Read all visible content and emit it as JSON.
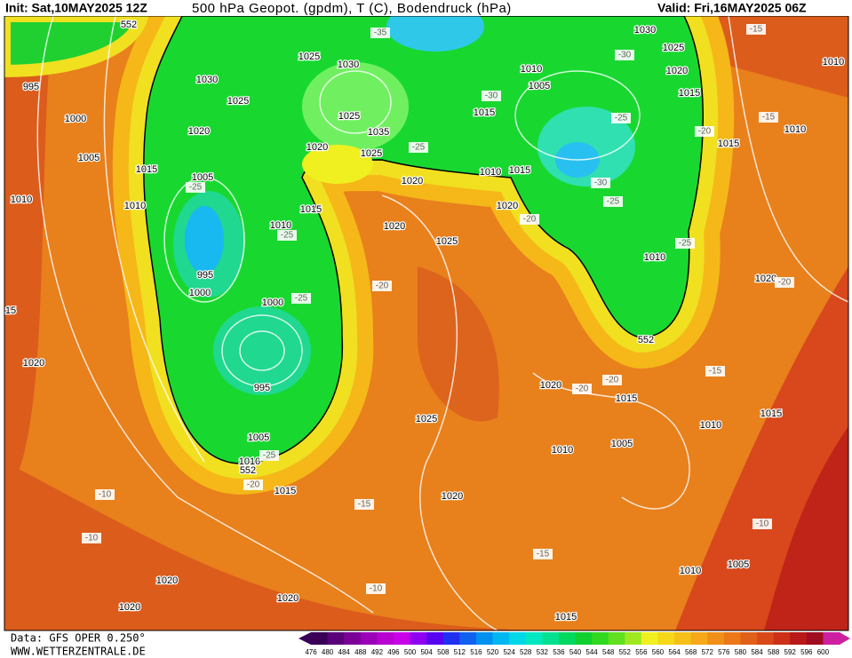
{
  "header": {
    "init": "Init: Sat,10MAY2025 12Z",
    "title": "500 hPa Geopot. (gpdm), T (C), Bodendruck (hPa)",
    "valid": "Valid: Fri,16MAY2025 06Z"
  },
  "footer": {
    "data": "Data: GFS OPER 0.250°",
    "site": "WWW.WETTERZENTRALE.DE"
  },
  "colorbar": {
    "labels": [
      "476",
      "480",
      "484",
      "488",
      "492",
      "496",
      "500",
      "504",
      "508",
      "512",
      "516",
      "520",
      "524",
      "528",
      "532",
      "536",
      "540",
      "544",
      "548",
      "552",
      "556",
      "560",
      "564",
      "568",
      "572",
      "576",
      "580",
      "584",
      "588",
      "592",
      "596",
      "600"
    ]
  },
  "map": {
    "pressure_labels": [
      "995",
      "1000",
      "1005",
      "1010",
      "1010",
      "1015",
      "1005",
      "1020",
      "1030",
      "1025",
      "1025",
      "1030",
      "1025",
      "1035",
      "1020",
      "1025",
      "1010",
      "1015",
      "1020",
      "1020",
      "1025",
      "1015",
      "1010",
      "1015",
      "1020",
      "1010",
      "1005",
      "1030",
      "1025",
      "1020",
      "1015",
      "1015",
      "1010",
      "1010",
      "1010",
      "1020",
      "995",
      "1000",
      "1000",
      "995",
      "1005",
      "1010",
      "1020",
      "1025",
      "1020",
      "1015",
      "1010",
      "1005",
      "1010",
      "1015",
      "1020",
      "1015",
      "1020",
      "1020",
      "1020",
      "1010",
      "1005",
      "1015",
      "15"
    ],
    "temperature_labels": [
      "-35",
      "-30",
      "-30",
      "-25",
      "-25",
      "-30",
      "-25",
      "-20",
      "-15",
      "-15",
      "-25",
      "-20",
      "-20",
      "-25",
      "-20",
      "-25",
      "-25",
      "-20",
      "-15",
      "-20",
      "-20",
      "-10",
      "-10",
      "-15",
      "-15",
      "-10",
      "-10",
      "-25"
    ],
    "geopotential_labels": [
      "552",
      "552",
      "552"
    ]
  }
}
